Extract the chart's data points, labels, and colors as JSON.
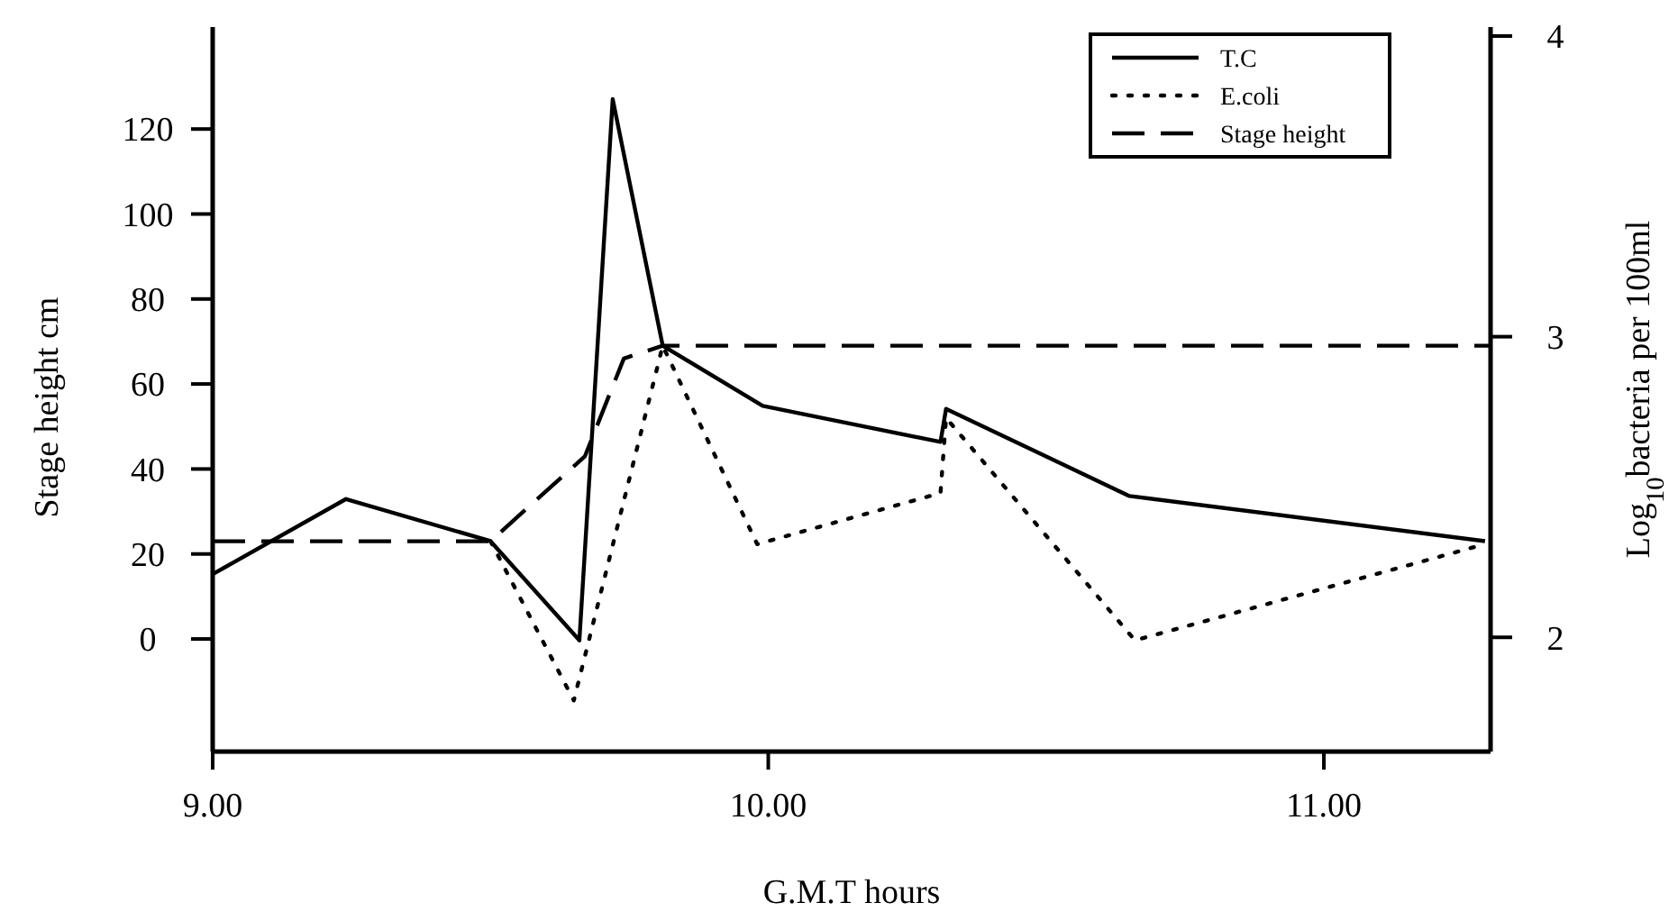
{
  "chart_data": {
    "type": "line",
    "xlabel": "G.M.T hours",
    "ylabel": "Stage height cm",
    "y2label": "Log$_{10}$bacteria per 100ml",
    "xlim": [
      9,
      11.3
    ],
    "xticks": [
      {
        "value": 9,
        "label": "9.00"
      },
      {
        "value": 10,
        "label": "10.00"
      },
      {
        "value": 11,
        "label": "11.00"
      }
    ],
    "ylim": [
      -26.5,
      144
    ],
    "yticks": [
      0,
      20,
      40,
      60,
      80,
      100,
      120
    ],
    "y2lim": [
      1.62,
      4.03
    ],
    "y2ticks": [
      2,
      3,
      4
    ],
    "grid": false,
    "legend": "top right",
    "marker": "none",
    "series": [
      {
        "name": "T.C",
        "color": "#000000",
        "axis": "y2",
        "line_style": "solid",
        "x": [
          9,
          9.24,
          9.5,
          9.66,
          9.72,
          9.81,
          9.99,
          10.31,
          10.32,
          10.65,
          11.29
        ],
        "values": [
          2.21,
          2.46,
          2.32,
          1.99,
          3.79,
          2.97,
          2.77,
          2.65,
          2.76,
          2.47,
          2.32
        ]
      },
      {
        "name": "E.coli",
        "color": "#000000",
        "axis": "y2",
        "line_style": "dotted",
        "x": [
          9.5,
          9.65,
          9.81,
          9.98,
          10.31,
          10.32,
          10.66,
          11.29
        ],
        "values": [
          2.32,
          1.79,
          2.97,
          2.31,
          2.48,
          2.73,
          1.99,
          2.31
        ]
      },
      {
        "name": "Stage height",
        "color": "#000000",
        "axis": "y",
        "line_style": "dashed",
        "x": [
          9,
          9.5,
          9.67,
          9.74,
          9.81,
          11.3
        ],
        "values": [
          23,
          23,
          43,
          66,
          69,
          69
        ]
      }
    ]
  }
}
